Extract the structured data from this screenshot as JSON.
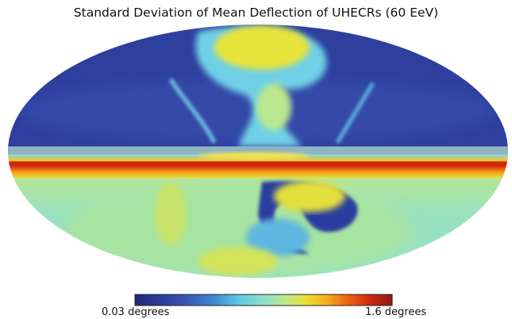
{
  "chart_data": {
    "type": "heatmap",
    "projection": "mollweide",
    "title": "Standard Deviation of Mean Deflection of UHECRs (60 EeV)",
    "colorbar": {
      "min_label": "0.03 degrees",
      "max_label": "1.6 degrees",
      "min": 0.03,
      "max": 1.6,
      "unit": "degrees",
      "colormap": "jet"
    }
  },
  "colors": {
    "jet": [
      "#1b2a78",
      "#2c3c99",
      "#3a55b6",
      "#3f86cf",
      "#5ec3e6",
      "#8fe0cc",
      "#b8e88f",
      "#e8e23a",
      "#f5b21e",
      "#ee6a12",
      "#d42a0e",
      "#8a1c18"
    ]
  }
}
